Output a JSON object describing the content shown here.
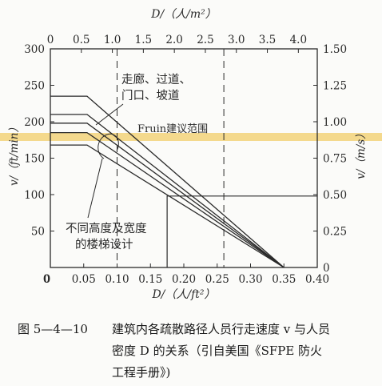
{
  "chart_data": {
    "type": "line",
    "x_bottom": {
      "label": "D/（人/ft²）",
      "ticks": [
        0,
        0.05,
        0.1,
        0.15,
        0.2,
        0.25,
        0.3,
        0.35,
        0.4
      ],
      "tick_labels": [
        "0",
        "0.05",
        "0.10",
        "0.15",
        "0.20",
        "0.25",
        "0.30",
        "0.35",
        "0.40"
      ],
      "range": [
        0,
        0.4
      ]
    },
    "x_top": {
      "label": "D/（人/m²）",
      "ticks": [
        0,
        0.5,
        1.0,
        1.5,
        2.0,
        2.5,
        3.0,
        3.5,
        4.0
      ],
      "tick_labels": [
        "0",
        "0.5",
        "1.0",
        "1.5",
        "2.0",
        "2.5",
        "3.0",
        "3.5",
        "4.0"
      ],
      "range": [
        0,
        4.305
      ]
    },
    "y_left": {
      "label": "v/（ft/min）",
      "ticks": [
        50,
        100,
        150,
        200,
        250,
        300
      ],
      "tick_labels": [
        "50",
        "100",
        "150",
        "200",
        "250",
        "300"
      ],
      "range": [
        0,
        300
      ]
    },
    "y_right": {
      "label": "v/（m/s）",
      "ticks": [
        0,
        0.25,
        0.5,
        0.75,
        1.0,
        1.25,
        1.5
      ],
      "tick_labels": [
        "0",
        "0.25",
        "0.50",
        "0.75",
        "1.00",
        "1.25",
        "1.50"
      ],
      "range": [
        0,
        1.5
      ]
    },
    "origin_label": "0",
    "series": [
      {
        "x": [
          0,
          0.055,
          0.35
        ],
        "y": [
          235,
          235,
          0
        ]
      },
      {
        "x": [
          0,
          0.055,
          0.35
        ],
        "y": [
          210,
          210,
          0
        ]
      },
      {
        "x": [
          0,
          0.055,
          0.35
        ],
        "y": [
          198,
          198,
          0
        ]
      },
      {
        "x": [
          0,
          0.055,
          0.35
        ],
        "y": [
          185,
          185,
          0
        ]
      },
      {
        "x": [
          0,
          0.055,
          0.35
        ],
        "y": [
          168,
          168,
          0
        ]
      }
    ],
    "dashed_lines_x": [
      0.1,
      0.26
    ],
    "solid_lines": [
      {
        "x": [
          0.175,
          0.175,
          0.4
        ],
        "y": [
          0,
          98,
          98
        ]
      }
    ],
    "annotations": {
      "corridor": [
        "走廊、过道、",
        "门口、坡道"
      ],
      "fruin": "Fruin建议范围",
      "stairs": [
        "不同高度及宽度",
        "的楼梯设计"
      ]
    },
    "highlight_color": "#f2d27a",
    "line_color": "#2a2a2a"
  },
  "caption": {
    "number": "图 5—4—10",
    "line1": "建筑内各疏散路径人员行走速度 v 与人员",
    "line2": "密度 D 的关系（引自美国《SFPE 防火",
    "line3": "工程手册》)"
  }
}
